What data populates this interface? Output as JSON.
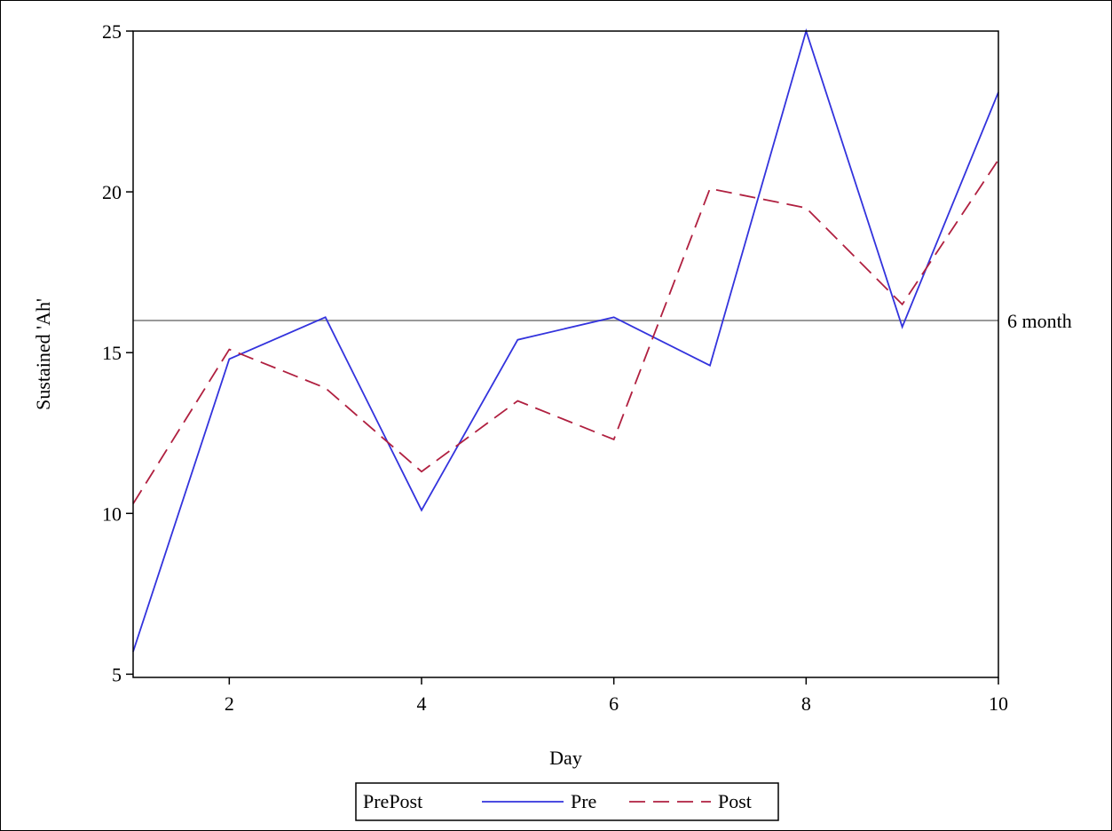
{
  "chart_data": {
    "type": "line",
    "xlabel": "Day",
    "ylabel": "Sustained 'Ah'",
    "x": [
      1,
      2,
      3,
      4,
      5,
      6,
      7,
      8,
      9,
      10
    ],
    "xlim": [
      1,
      10
    ],
    "ylim": [
      4.9,
      25
    ],
    "xticks": [
      2,
      4,
      6,
      8,
      10
    ],
    "yticks": [
      5,
      10,
      15,
      20,
      25
    ],
    "grid": false,
    "series": [
      {
        "name": "Pre",
        "color": "#3333dd",
        "dash": "solid",
        "values": [
          5.7,
          14.8,
          16.1,
          10.1,
          15.4,
          16.1,
          14.6,
          25.0,
          15.8,
          23.1
        ]
      },
      {
        "name": "Post",
        "color": "#b02040",
        "dash": "long-dash",
        "values": [
          10.3,
          15.1,
          13.9,
          11.3,
          13.5,
          12.3,
          20.1,
          19.5,
          16.5,
          21.0
        ]
      }
    ],
    "reference_line": {
      "y": 16,
      "label": "6 month",
      "color": "#999999"
    },
    "legend": {
      "title": "PrePost",
      "position": "bottom-center"
    }
  }
}
